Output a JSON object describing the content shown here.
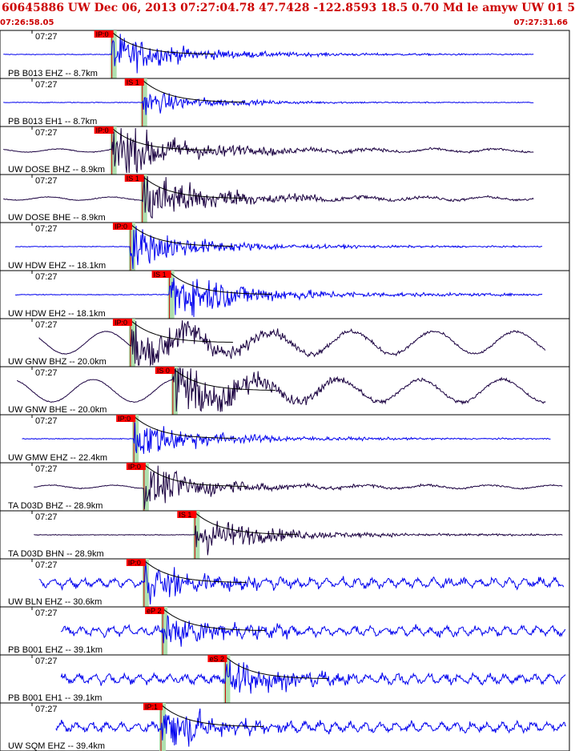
{
  "header": {
    "title": "60645886 UW Dec 06, 2013 07:27:04.78    47.7428 -122.8593 18.5 0.70 Md le amyw UW 01    5",
    "start_time": "07:26:58.05",
    "end_time": "07:27:31.66"
  },
  "colors": {
    "header_red": "#cc0000",
    "blue_trace": "#0000ee",
    "dark_trace": "#1a0040",
    "pick_band": "#aee0ae",
    "pick_box": "#ff0000"
  },
  "chart_data": {
    "type": "line",
    "title": "60645886 UW Dec 06, 2013 07:27:04.78    47.7428 -122.8593 18.5 0.70 Md le amyw UW 01    5",
    "xlim": [
      "07:26:58.05",
      "07:27:31.66"
    ],
    "tick_label": "07:27",
    "channels": [
      {
        "label": "PB B013 EHZ -- 8.7km",
        "pick": "IP:0",
        "pick_t": 6.6,
        "color": "blue",
        "amp": "mid",
        "long": "none",
        "start_t": 0.2,
        "end_t": 31.5
      },
      {
        "label": "PB B013 EH1 -- 8.7km",
        "pick": "IS 1",
        "pick_t": 8.4,
        "color": "blue",
        "amp": "small",
        "long": "none",
        "start_t": 0.2,
        "end_t": 31.5
      },
      {
        "label": "UW DOSE BHZ -- 8.9km",
        "pick": "IP:0",
        "pick_t": 6.6,
        "color": "dark",
        "amp": "large",
        "long": "small",
        "start_t": 0.2,
        "end_t": 31.5
      },
      {
        "label": "UW DOSE BHE -- 8.9km",
        "pick": "IS 1",
        "pick_t": 8.4,
        "color": "dark",
        "amp": "large",
        "long": "small",
        "start_t": 0.2,
        "end_t": 31.5
      },
      {
        "label": "UW HDW EHZ -- 18.1km",
        "pick": "IP:0",
        "pick_t": 7.7,
        "color": "blue",
        "amp": "mid",
        "long": "none",
        "start_t": 0.9,
        "end_t": 32.0
      },
      {
        "label": "UW HDW EH2 -- 18.1km",
        "pick": "IS 1",
        "pick_t": 10.0,
        "color": "blue",
        "amp": "large",
        "long": "none",
        "start_t": 0.9,
        "end_t": 32.0
      },
      {
        "label": "UW GNW BHZ -- 20.0km",
        "pick": "IP:0",
        "pick_t": 7.7,
        "color": "dark",
        "amp": "large",
        "long": "big",
        "start_t": 2.3,
        "end_t": 32.2
      },
      {
        "label": "UW GNW BHE -- 20.0km",
        "pick": "IS 0",
        "pick_t": 10.2,
        "color": "dark",
        "amp": "large",
        "long": "big",
        "start_t": 1.0,
        "end_t": 32.2
      },
      {
        "label": "UW GMW EHZ -- 22.4km",
        "pick": "IP:0",
        "pick_t": 7.9,
        "color": "blue",
        "amp": "mid",
        "long": "none",
        "start_t": 1.3,
        "end_t": 32.5
      },
      {
        "label": "TA D03D BHZ -- 28.9km",
        "pick": "IP:0",
        "pick_t": 8.5,
        "color": "dark",
        "amp": "mid",
        "long": "small",
        "start_t": 2.0,
        "end_t": 33.2
      },
      {
        "label": "TA D03D BHN -- 28.9km",
        "pick": "IS 1",
        "pick_t": 11.5,
        "color": "dark",
        "amp": "mid",
        "long": "none",
        "start_t": 2.0,
        "end_t": 33.2
      },
      {
        "label": "UW BLN EHZ -- 30.6km",
        "pick": "IP:0",
        "pick_t": 8.5,
        "color": "blue",
        "amp": "mid",
        "long": "noisy",
        "start_t": 2.3,
        "end_t": 33.3
      },
      {
        "label": "PB B001 EHZ -- 39.1km",
        "pick": "eP 2",
        "pick_t": 9.6,
        "color": "blue",
        "amp": "mid",
        "long": "noisy",
        "start_t": 3.6,
        "end_t": 33.5
      },
      {
        "label": "PB B001 EH1 -- 39.1km",
        "pick": "eS 2",
        "pick_t": 13.3,
        "color": "blue",
        "amp": "mid",
        "long": "noisy",
        "start_t": 3.6,
        "end_t": 33.5
      },
      {
        "label": "UW SQM EHZ -- 39.4km",
        "pick": "IP:1",
        "pick_t": 9.5,
        "color": "blue",
        "amp": "mid",
        "long": "noisy",
        "start_t": 3.3,
        "end_t": 33.6
      }
    ]
  }
}
